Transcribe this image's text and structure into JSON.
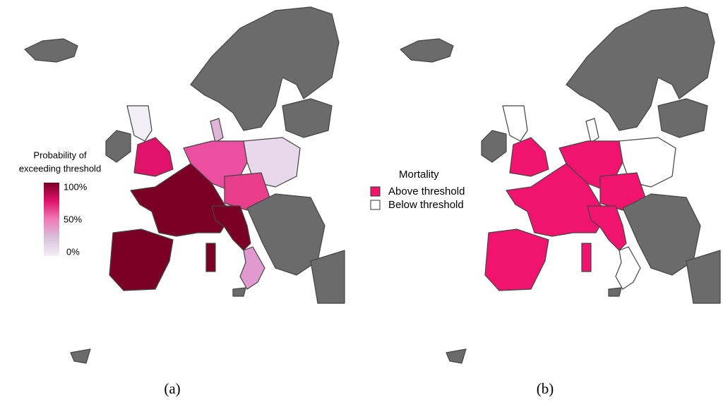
{
  "legend_a": {
    "title": [
      "Probability of",
      "exceeding threshold"
    ],
    "ticks": [
      "100%",
      "50%",
      "0%"
    ]
  },
  "legend_b": {
    "title": "Mortality",
    "items": [
      "Above threshold",
      "Below threshold"
    ]
  },
  "captions": [
    "(a)",
    "(b)"
  ]
}
